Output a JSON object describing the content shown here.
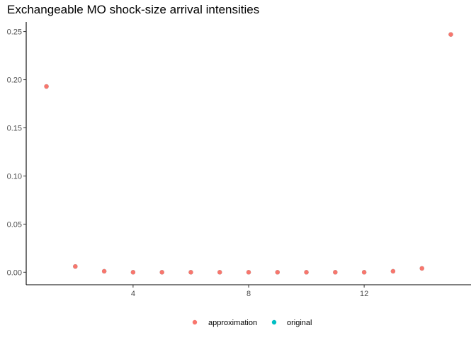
{
  "chart_data": {
    "type": "scatter",
    "title": "Exchangeable MO shock-size arrival intensities",
    "xlabel": "",
    "ylabel": "",
    "xlim": [
      0.3,
      15.7
    ],
    "ylim": [
      -0.013,
      0.26
    ],
    "x_ticks": [
      4,
      8,
      12
    ],
    "x_tick_labels": [
      "4",
      "8",
      "12"
    ],
    "y_ticks": [
      0.0,
      0.05,
      0.1,
      0.15,
      0.2,
      0.25
    ],
    "y_tick_labels": [
      "0.00",
      "0.05",
      "0.10",
      "0.15",
      "0.20",
      "0.25"
    ],
    "grid": false,
    "legend_position": "bottom",
    "series": [
      {
        "name": "approximation",
        "color": "#F8766D",
        "x": [
          1,
          2,
          3,
          4,
          5,
          6,
          7,
          8,
          9,
          10,
          11,
          12,
          13,
          14,
          15
        ],
        "y": [
          0.193,
          0.006,
          0.001,
          0.0,
          0.0,
          0.0,
          0.0,
          0.0,
          0.0,
          0.0,
          0.0,
          0.0,
          0.001,
          0.004,
          0.247
        ]
      },
      {
        "name": "original",
        "color": "#00BFC4",
        "x": [
          1,
          2,
          3,
          4,
          5,
          6,
          7,
          8,
          9,
          10,
          11,
          12,
          13,
          14,
          15
        ],
        "y": [
          0.193,
          0.006,
          0.001,
          0.0,
          0.0,
          0.0,
          0.0,
          0.0,
          0.0,
          0.0,
          0.0,
          0.0,
          0.001,
          0.004,
          0.247
        ]
      }
    ]
  }
}
